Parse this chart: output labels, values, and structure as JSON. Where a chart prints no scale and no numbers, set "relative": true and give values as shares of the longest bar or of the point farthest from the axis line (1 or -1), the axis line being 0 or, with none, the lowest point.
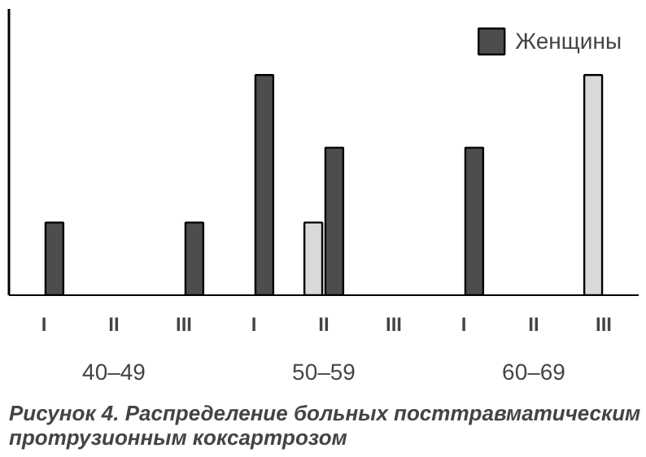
{
  "chart_data": {
    "type": "bar",
    "title": "Рисунок 4. Распределение больных посттравматическим\nпротрузионным коксартрозом",
    "relative": true,
    "categories": [
      "I",
      "II",
      "III",
      "I",
      "II",
      "III",
      "I",
      "II",
      "III"
    ],
    "series": [
      {
        "color": "#d9d9d9",
        "values": [
          null,
          null,
          null,
          null,
          0.33,
          null,
          null,
          null,
          1.0
        ]
      },
      {
        "name": "Женщины",
        "color": "#4d4d4d",
        "values": [
          0.33,
          null,
          0.33,
          1.0,
          0.67,
          null,
          0.67,
          null,
          null
        ]
      }
    ],
    "annotations": [
      "40–49",
      "50–59",
      "60–69"
    ],
    "legend": "top right",
    "grid": false
  }
}
